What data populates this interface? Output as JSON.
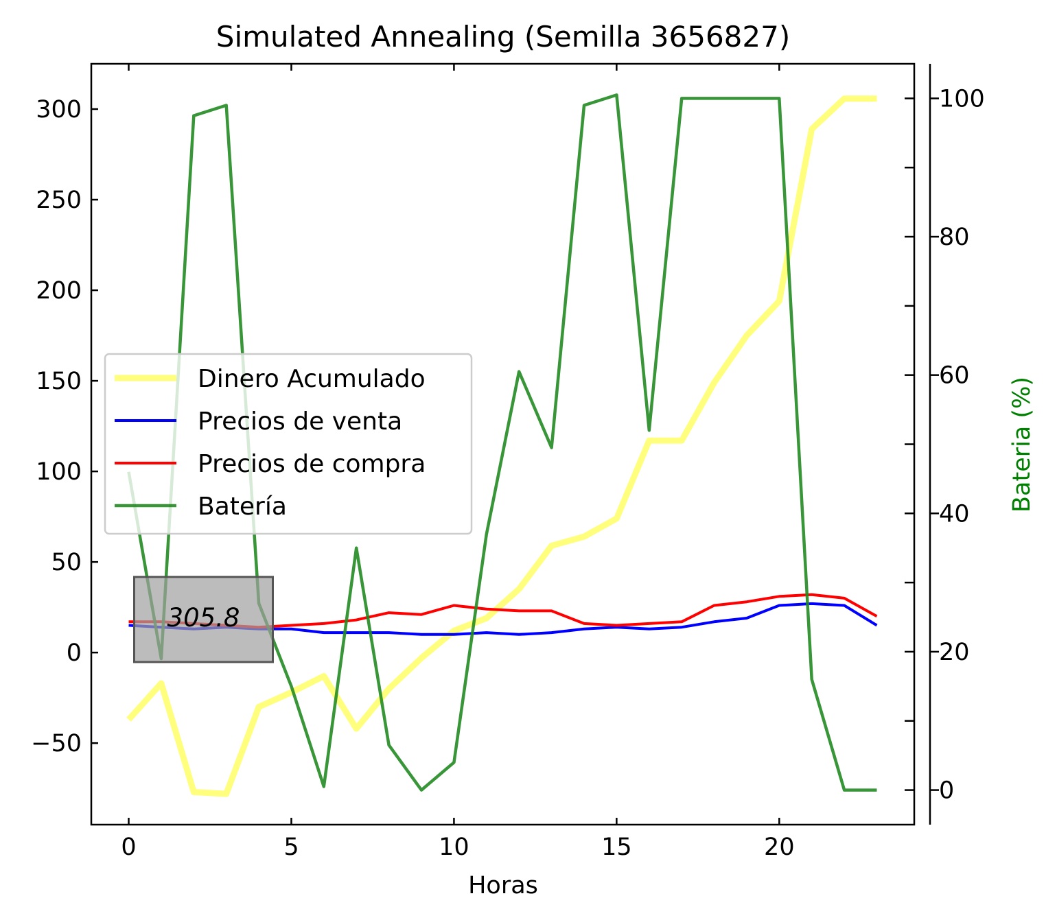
{
  "chart_data": {
    "type": "line",
    "title": "Simulated Annealing (Semilla 3656827)",
    "xlabel": "Horas",
    "ylabel": "",
    "y2label": "Bateria (%)",
    "xlim": [
      -1.15,
      24.15
    ],
    "ylim": [
      -95,
      325
    ],
    "y2lim": [
      -5,
      105
    ],
    "xticks": [
      0,
      5,
      10,
      15,
      20
    ],
    "yticks": [
      -50,
      0,
      50,
      100,
      150,
      200,
      250,
      300
    ],
    "ytick_labels": [
      "−50",
      "0",
      "50",
      "100",
      "150",
      "200",
      "250",
      "300"
    ],
    "y2ticks": [
      0,
      20,
      40,
      60,
      80,
      100
    ],
    "grid": false,
    "legend_position": "center-left",
    "x": [
      0,
      1,
      2,
      3,
      4,
      5,
      6,
      7,
      8,
      9,
      10,
      11,
      12,
      13,
      14,
      15,
      16,
      17,
      18,
      19,
      20,
      21,
      22,
      23
    ],
    "series": [
      {
        "name": "Dinero Acumulado",
        "axis": "left",
        "color": "#ffff66",
        "opacity": 0.85,
        "width": 9,
        "values": [
          -37,
          -17,
          -77,
          -78,
          -30,
          -22,
          -13,
          -42,
          -20,
          -3,
          12,
          19,
          35,
          59,
          64,
          74,
          117,
          117,
          149,
          175,
          194,
          289,
          305.8,
          305.8
        ]
      },
      {
        "name": "Precios de venta",
        "axis": "left",
        "color": "#0000ff",
        "opacity": 1,
        "width": 4,
        "values": [
          15,
          14,
          13,
          14,
          13,
          13,
          11,
          11,
          11,
          10,
          10,
          11,
          10,
          11,
          13,
          14,
          13,
          14,
          17,
          19,
          26,
          27,
          26,
          15
        ]
      },
      {
        "name": "Precios de compra",
        "axis": "left",
        "color": "#ff0000",
        "opacity": 1,
        "width": 4,
        "values": [
          17,
          17,
          16,
          15,
          14,
          15,
          16,
          18,
          22,
          21,
          26,
          24,
          23,
          23,
          16,
          15,
          16,
          17,
          26,
          28,
          31,
          32,
          30,
          20
        ]
      },
      {
        "name": "Batería",
        "axis": "right",
        "color": "#228b22",
        "opacity": 0.9,
        "width": 4.5,
        "values": [
          46,
          19,
          97.5,
          99,
          27,
          15,
          0.5,
          35,
          6.5,
          0,
          4,
          37,
          60.5,
          49.5,
          99,
          100.5,
          52,
          100,
          100,
          100,
          100,
          16,
          0,
          0
        ]
      }
    ],
    "annotation": {
      "text": "305.8",
      "x": 2.3,
      "y": 19
    }
  }
}
